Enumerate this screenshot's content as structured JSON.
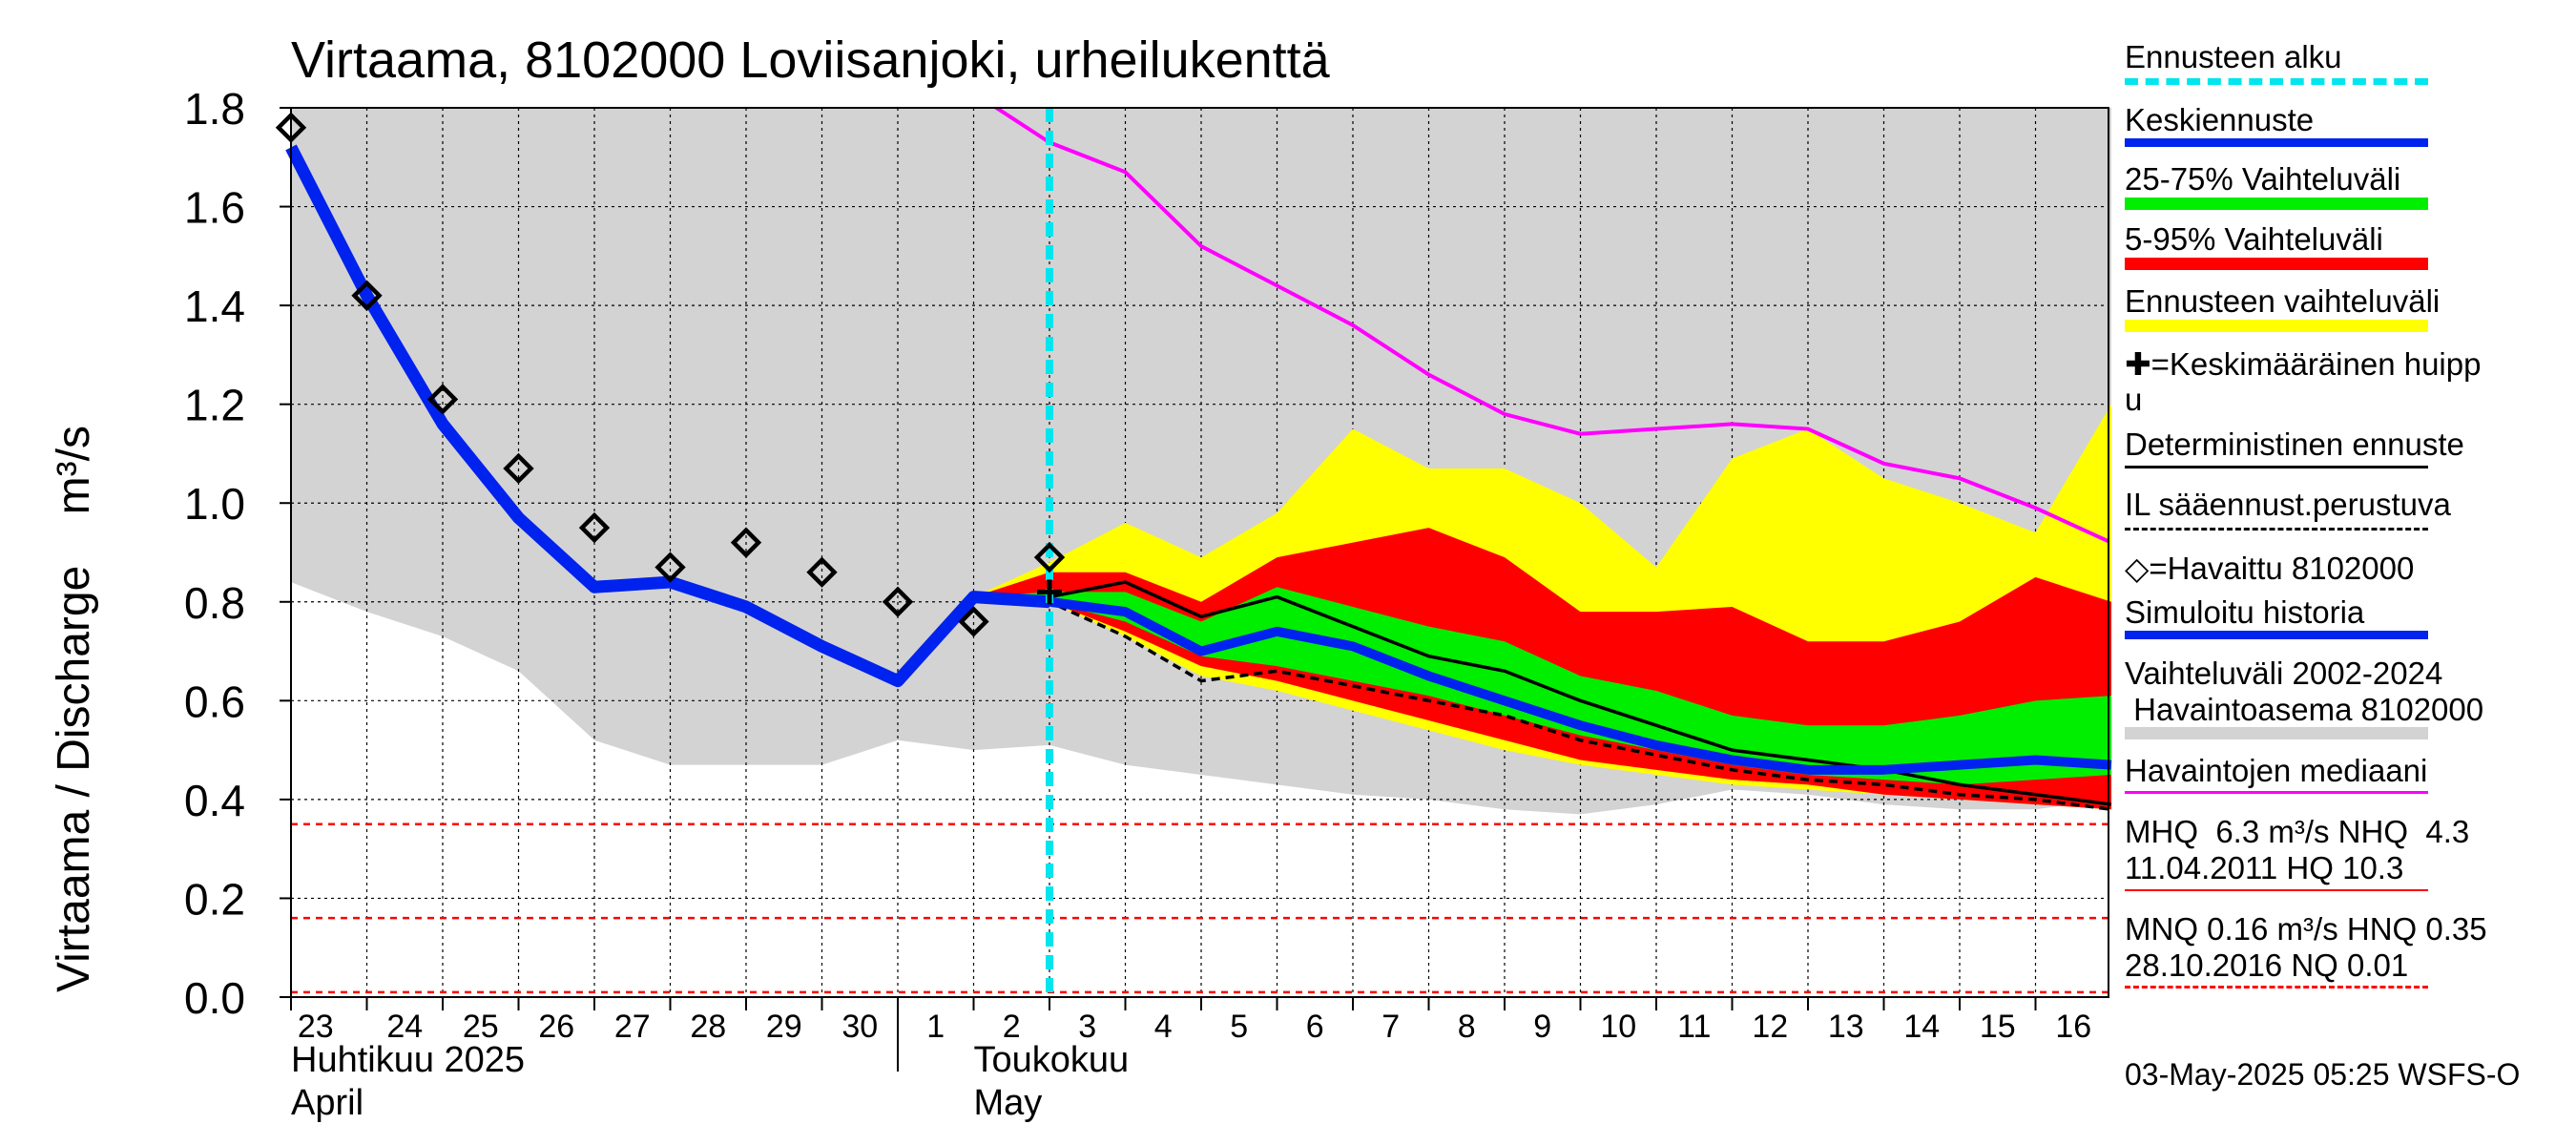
{
  "chart_data": {
    "type": "area",
    "title": "Virtaama, 8102000 Loviisanjoki, urheilukenttä",
    "ylabel": "Virtaama / Discharge",
    "yunit": "m³/s",
    "ylim": [
      0.0,
      1.8
    ],
    "yticks": [
      "0.0",
      "0.2",
      "0.4",
      "0.6",
      "0.8",
      "1.0",
      "1.2",
      "1.4",
      "1.6",
      "1.8"
    ],
    "x_dates": [
      "2025-04-23",
      "2025-04-24",
      "2025-04-25",
      "2025-04-26",
      "2025-04-27",
      "2025-04-28",
      "2025-04-29",
      "2025-04-30",
      "2025-05-01",
      "2025-05-02",
      "2025-05-03",
      "2025-05-04",
      "2025-05-05",
      "2025-05-06",
      "2025-05-07",
      "2025-05-08",
      "2025-05-09",
      "2025-05-10",
      "2025-05-11",
      "2025-05-12",
      "2025-05-13",
      "2025-05-14",
      "2025-05-15",
      "2025-05-16"
    ],
    "xticks": [
      "23",
      "24",
      "25",
      "26",
      "27",
      "28",
      "29",
      "30",
      "1",
      "2",
      "3",
      "4",
      "5",
      "6",
      "7",
      "8",
      "9",
      "10",
      "11",
      "12",
      "13",
      "14",
      "15",
      "16"
    ],
    "month_labels": [
      {
        "line1": "Huhtikuu  2025",
        "line2": "April"
      },
      {
        "line1": "Toukokuu",
        "line2": "May"
      }
    ],
    "forecast_start": "2025-05-03",
    "grid": true,
    "history_band_2002_2024": {
      "dates": [
        "2025-04-23",
        "2025-04-24",
        "2025-04-25",
        "2025-04-26",
        "2025-04-27",
        "2025-04-28",
        "2025-04-29",
        "2025-04-30",
        "2025-05-01",
        "2025-05-02",
        "2025-05-03",
        "2025-05-04",
        "2025-05-05",
        "2025-05-06",
        "2025-05-07",
        "2025-05-08",
        "2025-05-09",
        "2025-05-10",
        "2025-05-11",
        "2025-05-12",
        "2025-05-13",
        "2025-05-14",
        "2025-05-15",
        "2025-05-16",
        "2025-05-17"
      ],
      "low": [
        0.84,
        0.78,
        0.73,
        0.66,
        0.52,
        0.47,
        0.47,
        0.47,
        0.52,
        0.5,
        0.51,
        0.47,
        0.45,
        0.43,
        0.41,
        0.4,
        0.38,
        0.37,
        0.39,
        0.42,
        0.41,
        0.39,
        0.38,
        0.38,
        0.4
      ],
      "high": [
        1.8,
        1.8,
        1.8,
        1.8,
        1.8,
        1.8,
        1.8,
        1.8,
        1.8,
        1.8,
        1.8,
        1.8,
        1.8,
        1.8,
        1.8,
        1.8,
        1.8,
        1.8,
        1.8,
        1.8,
        1.8,
        1.8,
        1.8,
        1.8,
        1.8
      ]
    },
    "forecast_dates": [
      "2025-05-02",
      "2025-05-03",
      "2025-05-04",
      "2025-05-05",
      "2025-05-06",
      "2025-05-07",
      "2025-05-08",
      "2025-05-09",
      "2025-05-10",
      "2025-05-11",
      "2025-05-12",
      "2025-05-13",
      "2025-05-14",
      "2025-05-15",
      "2025-05-16",
      "2025-05-17"
    ],
    "forecast_range": {
      "low": [
        0.81,
        0.8,
        0.73,
        0.65,
        0.62,
        0.58,
        0.54,
        0.5,
        0.47,
        0.45,
        0.43,
        0.42,
        0.41,
        0.4,
        0.39,
        0.38
      ],
      "high": [
        0.81,
        0.88,
        0.96,
        0.89,
        0.98,
        1.15,
        1.07,
        1.07,
        1.0,
        0.87,
        1.09,
        1.15,
        1.05,
        1.0,
        0.94,
        1.2
      ]
    },
    "band_5_95": {
      "low": [
        0.81,
        0.8,
        0.74,
        0.67,
        0.64,
        0.6,
        0.56,
        0.52,
        0.48,
        0.46,
        0.44,
        0.43,
        0.41,
        0.4,
        0.39,
        0.38
      ],
      "high": [
        0.81,
        0.86,
        0.86,
        0.8,
        0.89,
        0.92,
        0.95,
        0.89,
        0.78,
        0.78,
        0.79,
        0.72,
        0.72,
        0.76,
        0.85,
        0.8
      ]
    },
    "band_25_75": {
      "low": [
        0.81,
        0.8,
        0.76,
        0.69,
        0.67,
        0.64,
        0.61,
        0.57,
        0.53,
        0.5,
        0.47,
        0.45,
        0.44,
        0.43,
        0.44,
        0.45
      ],
      "high": [
        0.81,
        0.82,
        0.82,
        0.76,
        0.83,
        0.79,
        0.75,
        0.72,
        0.65,
        0.62,
        0.57,
        0.55,
        0.55,
        0.57,
        0.6,
        0.61
      ]
    },
    "mean_forecast": [
      0.81,
      0.8,
      0.78,
      0.7,
      0.74,
      0.71,
      0.65,
      0.6,
      0.55,
      0.51,
      0.48,
      0.46,
      0.46,
      0.47,
      0.48,
      0.47
    ],
    "deterministic_forecast": [
      0.81,
      0.81,
      0.84,
      0.77,
      0.81,
      0.75,
      0.69,
      0.66,
      0.6,
      0.55,
      0.5,
      0.48,
      0.46,
      0.43,
      0.41,
      0.39
    ],
    "il_forecast": [
      0.81,
      0.8,
      0.73,
      0.64,
      0.66,
      0.63,
      0.6,
      0.57,
      0.52,
      0.49,
      0.46,
      0.44,
      0.43,
      0.41,
      0.4,
      0.38
    ],
    "mean_peak": {
      "date": "2025-05-03",
      "value": 0.82
    },
    "simulated_history": {
      "dates": [
        "2025-04-23",
        "2025-04-24",
        "2025-04-25",
        "2025-04-26",
        "2025-04-27",
        "2025-04-28",
        "2025-04-29",
        "2025-04-30",
        "2025-05-01",
        "2025-05-02",
        "2025-05-03"
      ],
      "values": [
        1.72,
        1.42,
        1.16,
        0.97,
        0.83,
        0.84,
        0.79,
        0.71,
        0.64,
        0.81,
        0.8
      ]
    },
    "observed": {
      "dates": [
        "2025-04-23",
        "2025-04-24",
        "2025-04-25",
        "2025-04-26",
        "2025-04-27",
        "2025-04-28",
        "2025-04-29",
        "2025-04-30",
        "2025-05-01",
        "2025-05-02",
        "2025-05-03"
      ],
      "values": [
        1.76,
        1.42,
        1.21,
        1.07,
        0.95,
        0.87,
        0.92,
        0.86,
        0.8,
        0.76,
        0.89
      ]
    },
    "median_observed": {
      "dates": [
        "2025-05-02",
        "2025-05-03",
        "2025-05-04",
        "2025-05-05",
        "2025-05-06",
        "2025-05-07",
        "2025-05-08",
        "2025-05-09",
        "2025-05-10",
        "2025-05-11",
        "2025-05-12",
        "2025-05-13",
        "2025-05-14",
        "2025-05-15",
        "2025-05-16",
        "2025-05-17"
      ],
      "values": [
        1.83,
        1.73,
        1.67,
        1.52,
        1.44,
        1.36,
        1.26,
        1.18,
        1.14,
        1.15,
        1.16,
        1.15,
        1.08,
        1.05,
        0.99,
        0.92
      ]
    },
    "reference_lines": [
      {
        "label": "HNQ",
        "value": 0.35,
        "color": "#ff0000",
        "style": "dashed"
      },
      {
        "label": "MNQ",
        "value": 0.16,
        "color": "#ff0000",
        "style": "dashed"
      },
      {
        "label": "NQ",
        "value": 0.01,
        "color": "#ff0000",
        "style": "dashed"
      }
    ],
    "colors": {
      "history_band": "#d3d3d3",
      "forecast_range": "#ffff00",
      "band_5_95": "#ff0000",
      "band_25_75": "#00ee00",
      "mean": "#0022ee",
      "deterministic": "#000000",
      "il": "#000000",
      "observed": "#000000",
      "simulated": "#0022ee",
      "median": "#ff00ff",
      "forecast_start": "#00e5ee"
    }
  },
  "legend": {
    "forecast_start": "Ennusteen alku",
    "mean": "Keskiennuste",
    "band_25_75": "25-75% Vaihteluväli",
    "band_5_95": "5-95% Vaihteluväli",
    "forecast_range": "Ennusteen vaihteluväli",
    "peak_line1": "✚=Keskimääräinen huipp",
    "peak_line2": "u",
    "deterministic": "Deterministinen ennuste",
    "il": "IL sääennust.perustuva",
    "observed": "◇=Havaittu 8102000",
    "simulated": "Simuloitu historia",
    "history_line1": "Vaihteluväli 2002-2024",
    "history_line2": " Havaintoasema 8102000",
    "median": "Havaintojen mediaani",
    "mhq_line1": "MHQ  6.3 m³/s NHQ  4.3",
    "mhq_line2": "11.04.2011 HQ 10.3",
    "mnq_line1": "MNQ 0.16 m³/s HNQ 0.35",
    "mnq_line2": "28.10.2016 NQ 0.01"
  },
  "footer": "03-May-2025 05:25 WSFS-O"
}
